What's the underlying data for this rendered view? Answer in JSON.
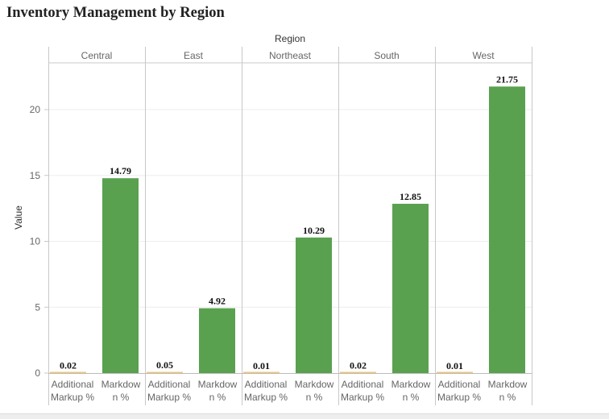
{
  "title": "Inventory Management by Region",
  "chart_data": {
    "type": "bar",
    "title": "Inventory Management by Region",
    "column_header": "Region",
    "ylabel": "Value",
    "ylim": [
      0,
      24
    ],
    "yticks": [
      "0",
      "5",
      "10",
      "15",
      "20"
    ],
    "grid": true,
    "legend": "none",
    "panels": [
      {
        "region": "Central",
        "bars": [
          {
            "measure_line1": "Additional",
            "measure_line2": "Markup %",
            "value": 0.02,
            "label": "0.02",
            "color": "#f0c676"
          },
          {
            "measure_line1": "Markdow",
            "measure_line2": "n %",
            "value": 14.79,
            "label": "14.79",
            "color": "#59a14f"
          }
        ]
      },
      {
        "region": "East",
        "bars": [
          {
            "measure_line1": "Additional",
            "measure_line2": "Markup %",
            "value": 0.05,
            "label": "0.05",
            "color": "#f0c676"
          },
          {
            "measure_line1": "Markdow",
            "measure_line2": "n %",
            "value": 4.92,
            "label": "4.92",
            "color": "#59a14f"
          }
        ]
      },
      {
        "region": "Northeast",
        "bars": [
          {
            "measure_line1": "Additional",
            "measure_line2": "Markup %",
            "value": 0.01,
            "label": "0.01",
            "color": "#f0c676"
          },
          {
            "measure_line1": "Markdow",
            "measure_line2": "n %",
            "value": 10.29,
            "label": "10.29",
            "color": "#59a14f"
          }
        ]
      },
      {
        "region": "South",
        "bars": [
          {
            "measure_line1": "Additional",
            "measure_line2": "Markup %",
            "value": 0.02,
            "label": "0.02",
            "color": "#f0c676"
          },
          {
            "measure_line1": "Markdow",
            "measure_line2": "n %",
            "value": 12.85,
            "label": "12.85",
            "color": "#59a14f"
          }
        ]
      },
      {
        "region": "West",
        "bars": [
          {
            "measure_line1": "Additional",
            "measure_line2": "Markup %",
            "value": 0.01,
            "label": "0.01",
            "color": "#f0c676"
          },
          {
            "measure_line1": "Markdow",
            "measure_line2": "n %",
            "value": 21.75,
            "label": "21.75",
            "color": "#59a14f"
          }
        ]
      }
    ]
  }
}
